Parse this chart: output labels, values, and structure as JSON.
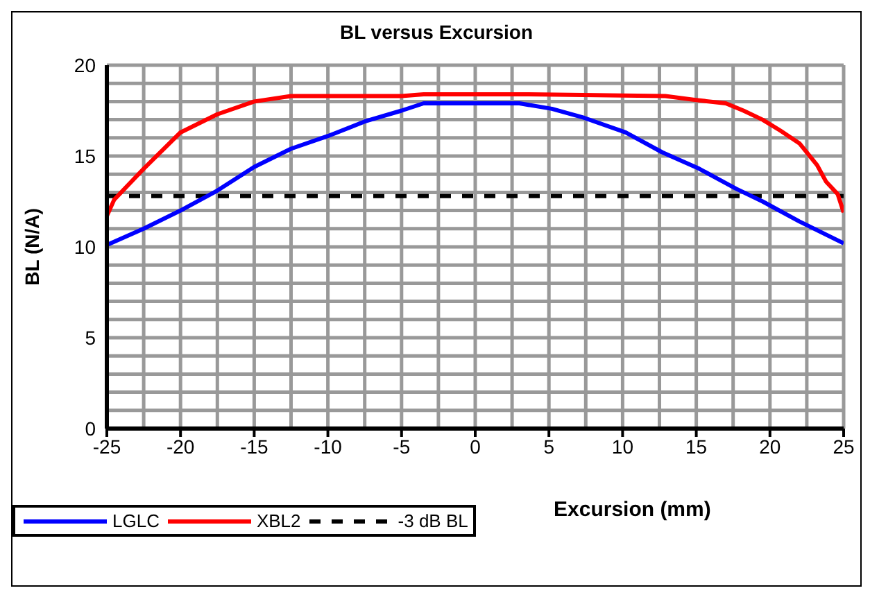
{
  "chart_data": {
    "type": "line",
    "title": "BL versus Excursion",
    "xlabel": "Excursion (mm)",
    "ylabel": "BL (N/A)",
    "xlim": [
      -25,
      25
    ],
    "xticks": [
      -25,
      -20,
      -15,
      -10,
      -5,
      0,
      5,
      10,
      15,
      20,
      25
    ],
    "ylim": [
      0,
      20
    ],
    "yticks": [
      0,
      5,
      10,
      15,
      20
    ],
    "grid": true,
    "legend": "bottom left",
    "marker": "none",
    "line_style": "solid",
    "series": [
      {
        "name": "LGLC",
        "color": "#0000ff",
        "x": [
          -25,
          -22.5,
          -20,
          -17.5,
          -15,
          -12.5,
          -10,
          -7.5,
          -5,
          -3.5,
          0,
          3,
          5.2,
          7.4,
          10.2,
          12.7,
          15.2,
          17.7,
          19.5,
          22,
          25
        ],
        "values": [
          10.1,
          11.0,
          12.0,
          13.1,
          14.4,
          15.4,
          16.1,
          16.9,
          17.5,
          17.9,
          17.9,
          17.9,
          17.6,
          17.1,
          16.3,
          15.2,
          14.3,
          13.2,
          12.5,
          11.4,
          10.2
        ]
      },
      {
        "name": "XBL2",
        "color": "#ff0000",
        "x": [
          -25,
          -24.5,
          -22.5,
          -20,
          -17.5,
          -15,
          -12.5,
          -5,
          -3.5,
          0,
          3.4,
          12.9,
          14.8,
          17,
          18.2,
          19.5,
          20.7,
          22,
          23.2,
          23.8,
          24.6,
          25
        ],
        "values": [
          11.7,
          12.6,
          14.3,
          16.3,
          17.3,
          18.0,
          18.3,
          18.3,
          18.4,
          18.4,
          18.4,
          18.3,
          18.1,
          17.9,
          17.5,
          17.0,
          16.4,
          15.7,
          14.5,
          13.6,
          12.9,
          11.9
        ]
      }
    ],
    "ref_lines": [
      {
        "axis": "y",
        "value": 12.8,
        "label": "-3 dB BL",
        "color": "#000000",
        "line_style": "dashed"
      }
    ]
  }
}
